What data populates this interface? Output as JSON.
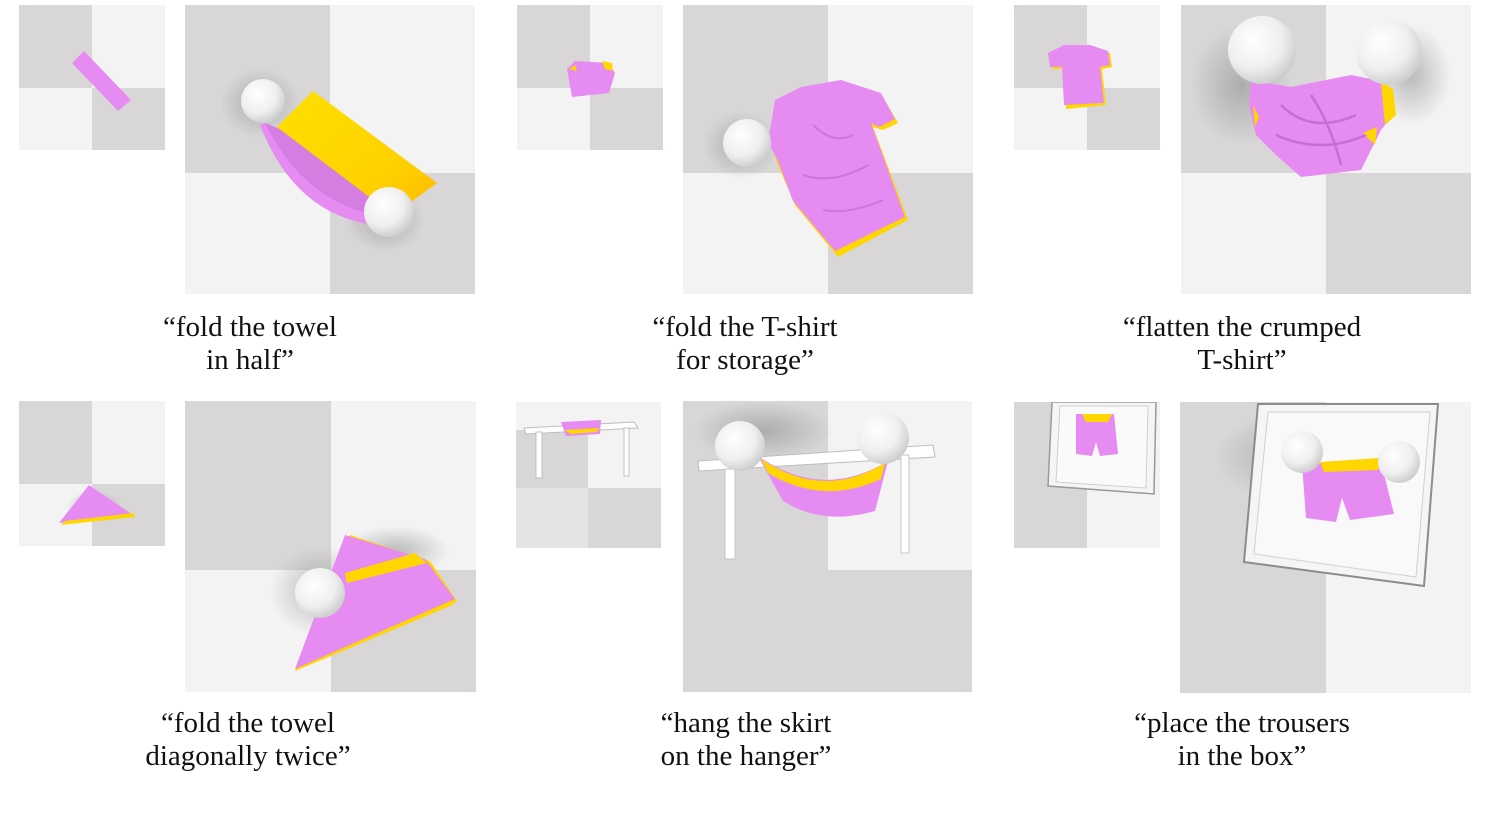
{
  "figure": {
    "tasks": [
      {
        "caption_line1": "“fold the towel",
        "caption_line2": "in half”"
      },
      {
        "caption_line1": "“fold the T-shirt",
        "caption_line2": "for storage”"
      },
      {
        "caption_line1": "“flatten the crumped",
        "caption_line2": "T-shirt”"
      },
      {
        "caption_line1": "“fold the towel",
        "caption_line2": "diagonally twice”"
      },
      {
        "caption_line1": "“hang the skirt",
        "caption_line2": "on the hanger”"
      },
      {
        "caption_line1": "“place the trousers",
        "caption_line2": "in the box”"
      }
    ]
  },
  "colors": {
    "cloth_front": "#e58bf2",
    "cloth_back": "#ffd600",
    "floor_light": "#f3f3f3",
    "floor_dark": "#d8d6d6",
    "gripper": "#f4f4f4"
  }
}
